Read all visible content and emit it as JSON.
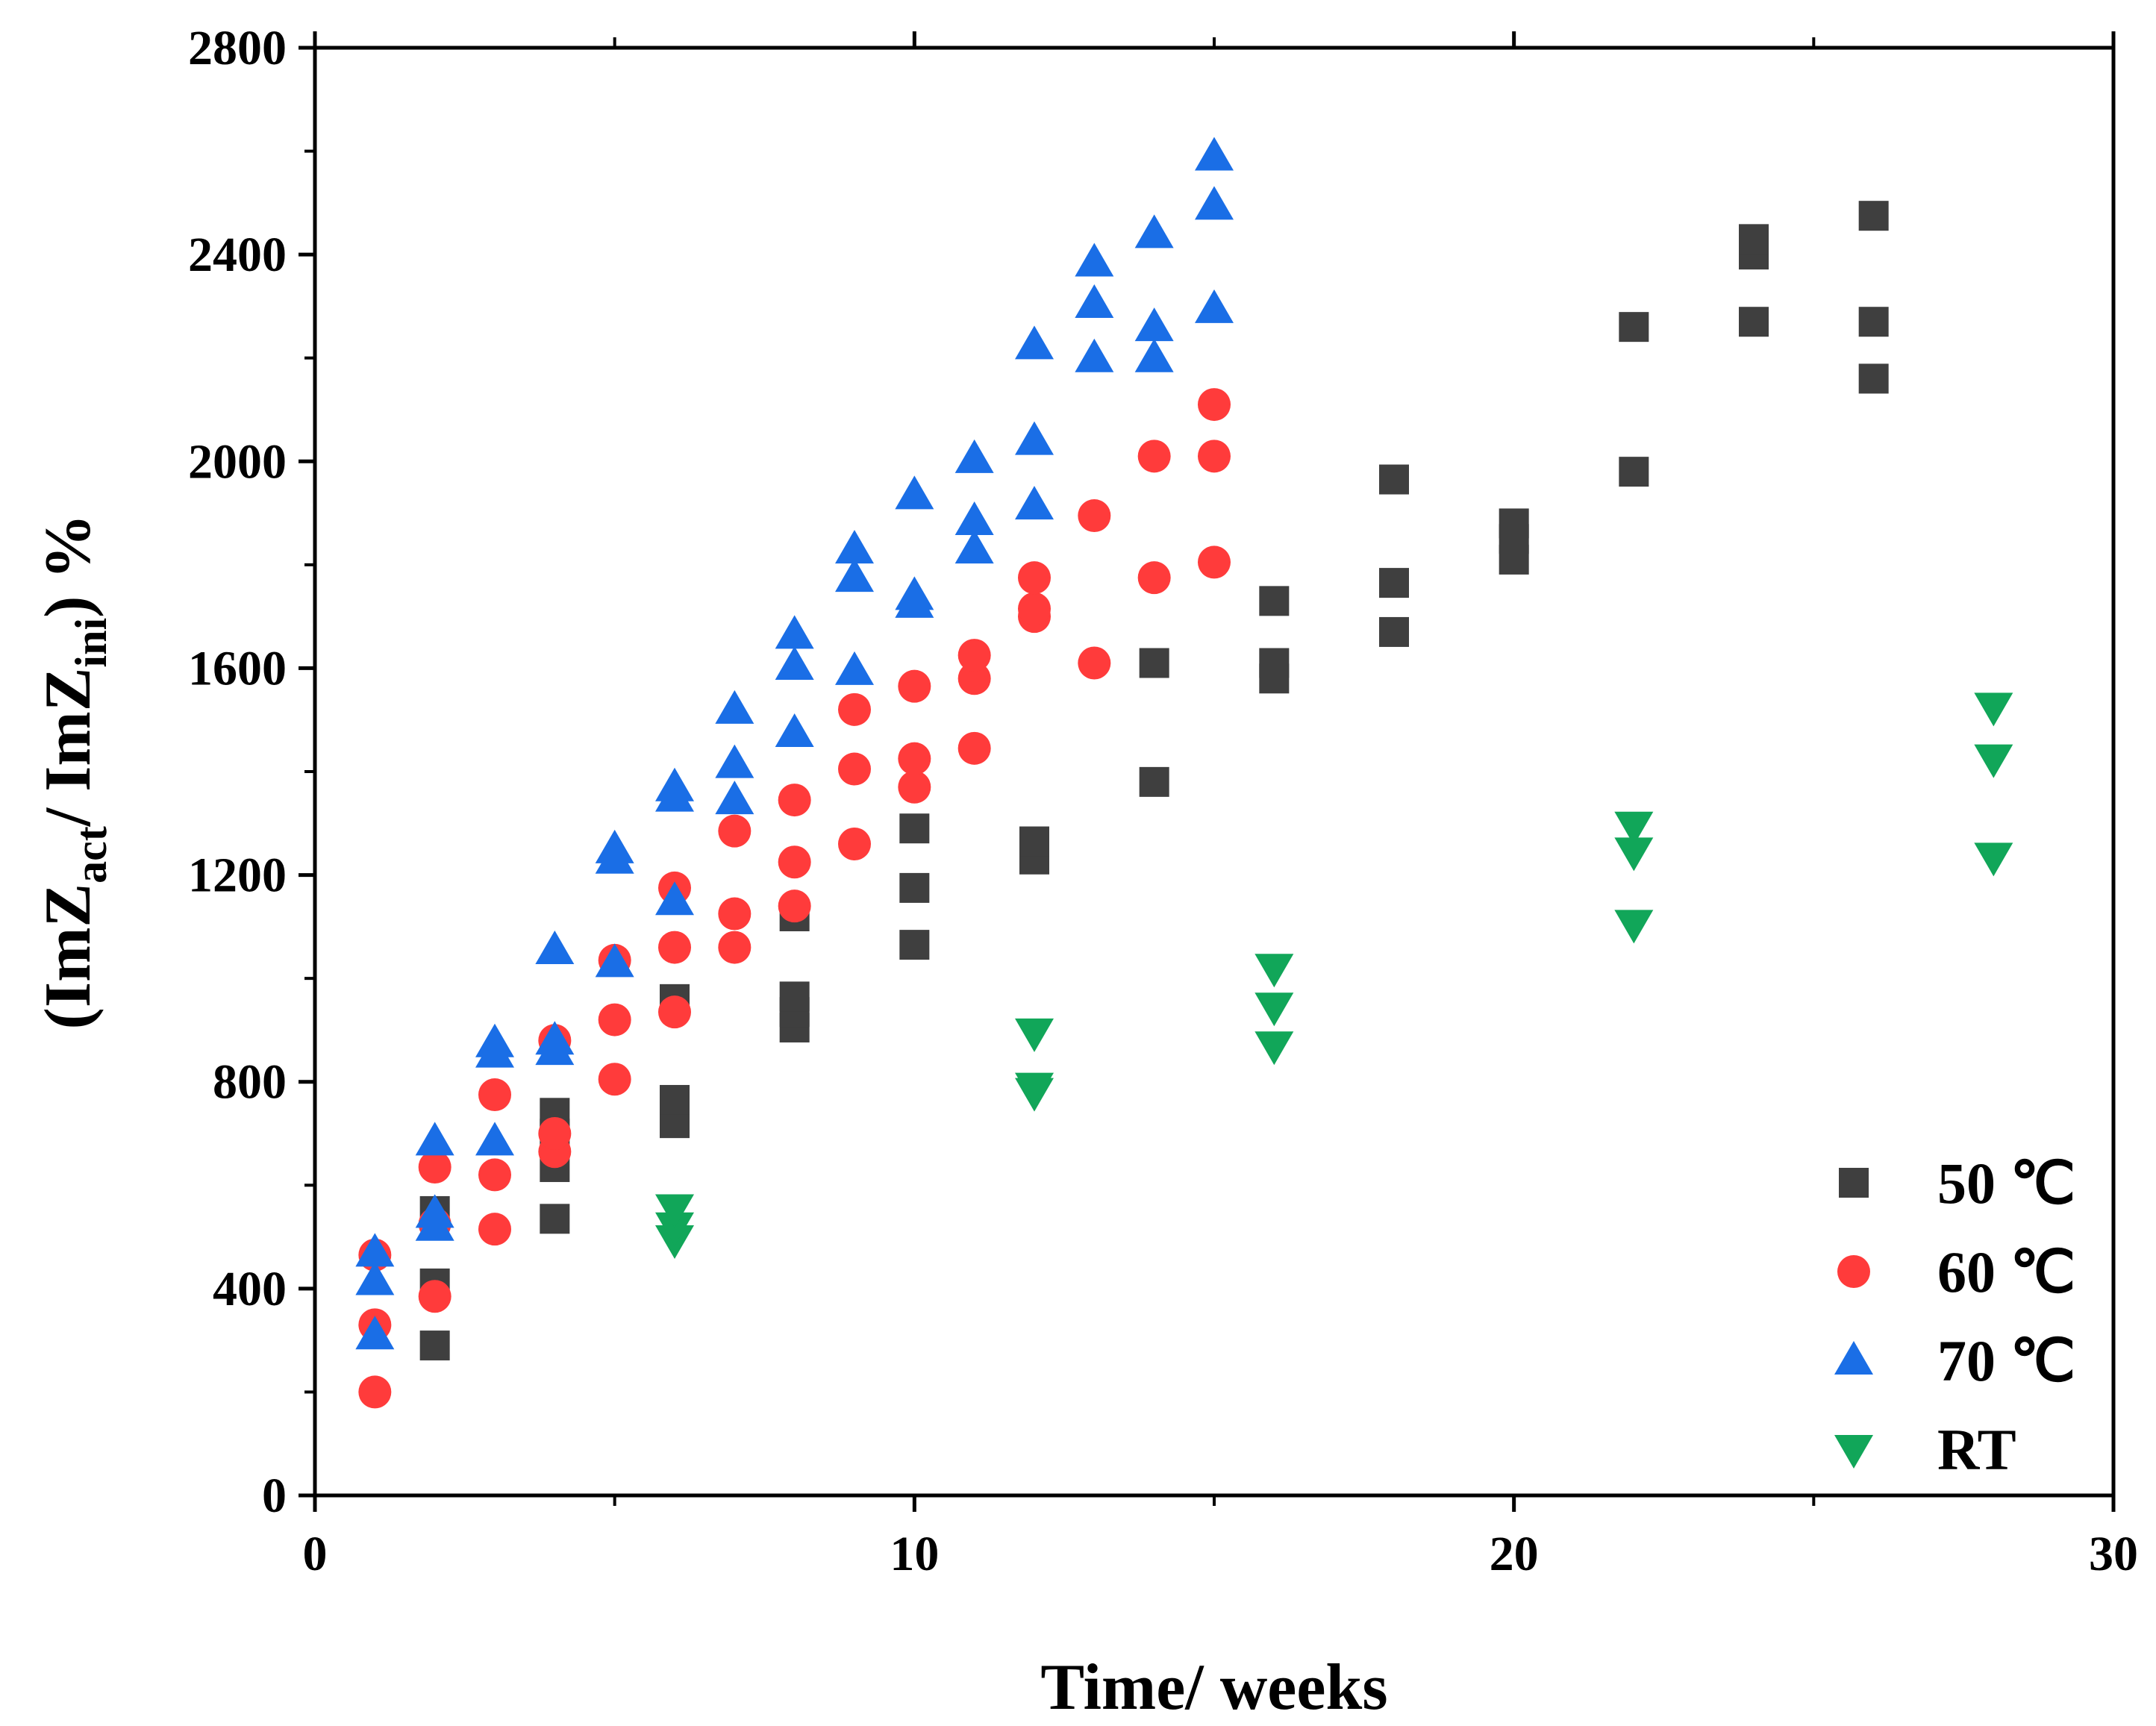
{
  "chart_data": {
    "type": "scatter",
    "title": "",
    "xlabel": "Time/ weeks",
    "ylabel": {
      "prefix": "(ImZ",
      "sub1": "act",
      "middle": "/ ImZ",
      "sub2": "ini",
      "suffix": ") %"
    },
    "xlim": [
      0,
      30
    ],
    "ylim": [
      0,
      2800
    ],
    "x_ticks": [
      0,
      10,
      20,
      30
    ],
    "y_ticks": [
      0,
      400,
      800,
      1200,
      1600,
      2000,
      2400,
      2800
    ],
    "grid": false,
    "legend_position": "bottom-right",
    "series": [
      {
        "name": "50 ℃",
        "marker": "square",
        "color": "#3f3f3f",
        "points": [
          [
            2,
            290
          ],
          [
            2,
            410
          ],
          [
            2,
            550
          ],
          [
            4,
            535
          ],
          [
            4,
            635
          ],
          [
            4,
            700
          ],
          [
            4,
            740
          ],
          [
            6,
            720
          ],
          [
            6,
            765
          ],
          [
            6,
            960
          ],
          [
            8,
            905
          ],
          [
            8,
            935
          ],
          [
            8,
            965
          ],
          [
            8,
            1120
          ],
          [
            10,
            1065
          ],
          [
            10,
            1175
          ],
          [
            10,
            1290
          ],
          [
            12,
            1230
          ],
          [
            12,
            1265
          ],
          [
            14,
            1380
          ],
          [
            14,
            1610
          ],
          [
            16,
            1580
          ],
          [
            16,
            1610
          ],
          [
            16,
            1730
          ],
          [
            18,
            1670
          ],
          [
            18,
            1765
          ],
          [
            18,
            1965
          ],
          [
            20,
            1810
          ],
          [
            20,
            1850
          ],
          [
            20,
            1880
          ],
          [
            22,
            1980
          ],
          [
            22,
            2260
          ],
          [
            24,
            2270
          ],
          [
            24,
            2400
          ],
          [
            24,
            2430
          ],
          [
            26,
            2160
          ],
          [
            26,
            2270
          ],
          [
            26,
            2475
          ]
        ]
      },
      {
        "name": "60 ℃",
        "marker": "circle",
        "color": "#ff3b3b",
        "points": [
          [
            1,
            200
          ],
          [
            1,
            330
          ],
          [
            1,
            465
          ],
          [
            2,
            385
          ],
          [
            2,
            525
          ],
          [
            2,
            635
          ],
          [
            3,
            515
          ],
          [
            3,
            620
          ],
          [
            3,
            775
          ],
          [
            4,
            665
          ],
          [
            4,
            700
          ],
          [
            4,
            880
          ],
          [
            5,
            805
          ],
          [
            5,
            920
          ],
          [
            5,
            1035
          ],
          [
            6,
            935
          ],
          [
            6,
            1060
          ],
          [
            6,
            1175
          ],
          [
            7,
            1060
          ],
          [
            7,
            1125
          ],
          [
            7,
            1285
          ],
          [
            8,
            1140
          ],
          [
            8,
            1225
          ],
          [
            8,
            1345
          ],
          [
            9,
            1260
          ],
          [
            9,
            1405
          ],
          [
            9,
            1520
          ],
          [
            10,
            1370
          ],
          [
            10,
            1425
          ],
          [
            10,
            1565
          ],
          [
            11,
            1445
          ],
          [
            11,
            1580
          ],
          [
            11,
            1625
          ],
          [
            12,
            1700
          ],
          [
            12,
            1715
          ],
          [
            12,
            1775
          ],
          [
            13,
            1610
          ],
          [
            13,
            1895
          ],
          [
            14,
            1775
          ],
          [
            14,
            2010
          ],
          [
            15,
            1805
          ],
          [
            15,
            2010
          ],
          [
            15,
            2110
          ]
        ]
      },
      {
        "name": "70 ℃",
        "marker": "triangle-up",
        "color": "#1a6ee6",
        "points": [
          [
            1,
            310
          ],
          [
            1,
            415
          ],
          [
            1,
            470
          ],
          [
            2,
            520
          ],
          [
            2,
            545
          ],
          [
            2,
            685
          ],
          [
            3,
            685
          ],
          [
            3,
            855
          ],
          [
            3,
            875
          ],
          [
            4,
            860
          ],
          [
            4,
            880
          ],
          [
            4,
            1055
          ],
          [
            5,
            1030
          ],
          [
            5,
            1230
          ],
          [
            5,
            1250
          ],
          [
            6,
            1150
          ],
          [
            6,
            1350
          ],
          [
            6,
            1370
          ],
          [
            7,
            1345
          ],
          [
            7,
            1415
          ],
          [
            7,
            1520
          ],
          [
            8,
            1475
          ],
          [
            8,
            1605
          ],
          [
            8,
            1665
          ],
          [
            9,
            1595
          ],
          [
            9,
            1775
          ],
          [
            9,
            1830
          ],
          [
            10,
            1725
          ],
          [
            10,
            1740
          ],
          [
            10,
            1935
          ],
          [
            11,
            1830
          ],
          [
            11,
            1885
          ],
          [
            11,
            2005
          ],
          [
            12,
            1915
          ],
          [
            12,
            2040
          ],
          [
            12,
            2225
          ],
          [
            13,
            2200
          ],
          [
            13,
            2305
          ],
          [
            13,
            2385
          ],
          [
            14,
            2200
          ],
          [
            14,
            2260
          ],
          [
            14,
            2440
          ],
          [
            15,
            2295
          ],
          [
            15,
            2495
          ],
          [
            15,
            2590
          ]
        ]
      },
      {
        "name": "RT",
        "marker": "triangle-down",
        "color": "#11a659",
        "points": [
          [
            6,
            495
          ],
          [
            6,
            520
          ],
          [
            6,
            555
          ],
          [
            12,
            780
          ],
          [
            12,
            790
          ],
          [
            12,
            895
          ],
          [
            16,
            870
          ],
          [
            16,
            945
          ],
          [
            16,
            1020
          ],
          [
            22,
            1105
          ],
          [
            22,
            1245
          ],
          [
            22,
            1295
          ],
          [
            28,
            1235
          ],
          [
            28,
            1425
          ],
          [
            28,
            1525
          ]
        ]
      }
    ]
  }
}
